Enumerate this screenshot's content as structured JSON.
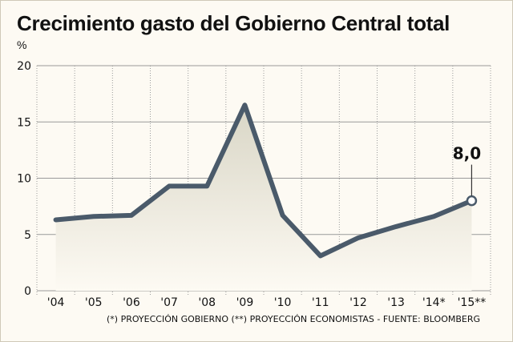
{
  "chart_data": {
    "type": "area",
    "title": "Crecimiento gasto del Gobierno Central total",
    "ylabel": "%",
    "xlabel": "",
    "categories": [
      "'04",
      "'05",
      "'06",
      "'07",
      "'08",
      "'09",
      "'10",
      "'11",
      "'12",
      "'13",
      "'14*",
      "'15**"
    ],
    "series": [
      {
        "values": [
          6.3,
          6.6,
          6.7,
          9.3,
          9.3,
          16.5,
          6.7,
          3.1,
          4.7,
          5.7,
          6.6,
          8.0
        ]
      }
    ],
    "ylim": [
      0,
      20
    ],
    "yticks": [
      "0",
      "5",
      "10",
      "15",
      "20"
    ],
    "grid": true,
    "annotation": {
      "text": "8,0",
      "category": "'15**"
    },
    "colors": {
      "line": "#4a5a6a",
      "grid": "#9a9a9a",
      "fill_top": "#d9d6c6",
      "background": "#fdfaf3"
    }
  },
  "footnote": "(*) PROYECCIÓN GOBIERNO  (**) PROYECCIÓN ECONOMISTAS - FUENTE: BLOOMBERG"
}
